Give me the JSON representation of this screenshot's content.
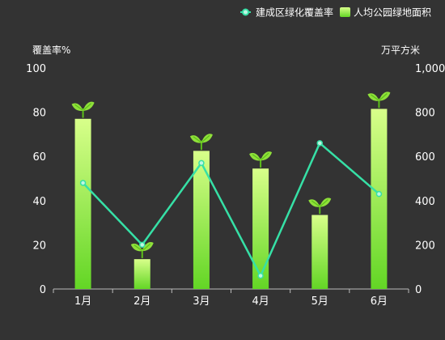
{
  "chart_data": {
    "type": "bar",
    "categories": [
      "1月",
      "2月",
      "3月",
      "4月",
      "5月",
      "6月"
    ],
    "series": [
      {
        "name": "人均公园绿地面积",
        "type": "bar",
        "axis": "right",
        "values": [
          770,
          135,
          625,
          545,
          335,
          815
        ]
      },
      {
        "name": "建成区绿化覆盖率",
        "type": "line",
        "axis": "left",
        "values": [
          48,
          20,
          57,
          6,
          66,
          43
        ]
      }
    ],
    "y_left": {
      "label": "覆盖率%",
      "range": [
        0,
        100
      ],
      "ticks": [
        "0",
        "20",
        "40",
        "60",
        "80",
        "100"
      ]
    },
    "y_right": {
      "label": "万平方米",
      "range": [
        0,
        1000
      ],
      "ticks": [
        "0",
        "200",
        "400",
        "600",
        "800",
        "1,000"
      ]
    },
    "legend_position": "top-right",
    "grid": false,
    "bar_marker_icon": "sprout-icon",
    "colors": {
      "bar_top": "#d8ff8a",
      "bar_bottom": "#63d625",
      "line": "#36e0a6",
      "marker_fill": "#bff6e3",
      "leaf": "#8fe03a",
      "leaf_dark": "#5cbf1a",
      "axis": "#bbbbbb",
      "background": "#333333"
    }
  }
}
